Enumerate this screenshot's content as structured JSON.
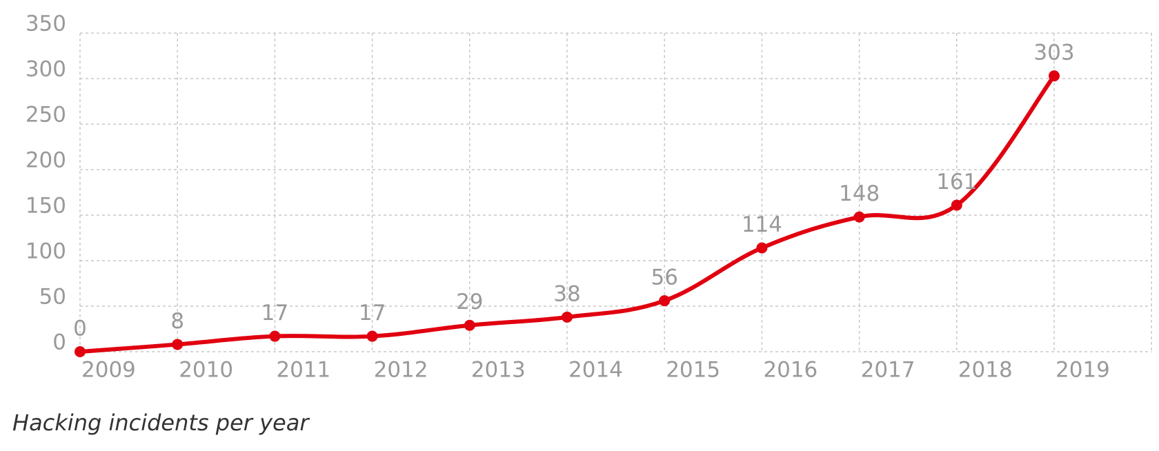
{
  "chart_data": {
    "type": "line",
    "title": "Hacking incidents per year",
    "categories": [
      "2009",
      "2010",
      "2011",
      "2012",
      "2013",
      "2014",
      "2015",
      "2016",
      "2017",
      "2018",
      "2019"
    ],
    "series": [
      {
        "name": "Hacking incidents",
        "color": "#e0000f",
        "values": [
          0,
          8,
          17,
          17,
          29,
          38,
          56,
          114,
          148,
          161,
          303
        ]
      }
    ],
    "ylim": [
      0,
      350
    ],
    "yticks": [
      0,
      50,
      100,
      150,
      200,
      250,
      300,
      350
    ],
    "grid": true
  }
}
